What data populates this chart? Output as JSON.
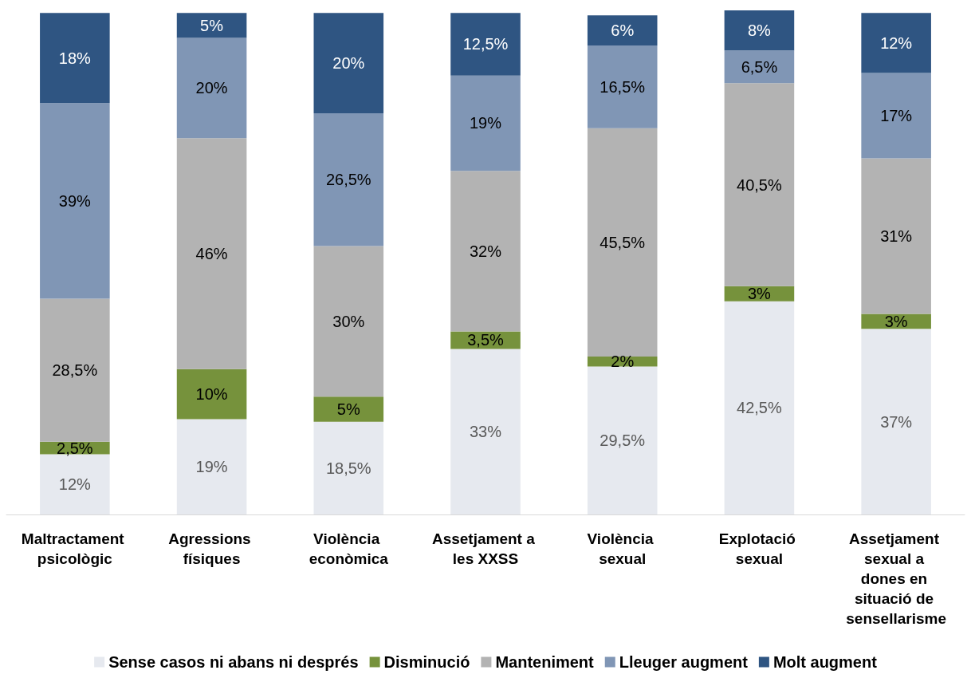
{
  "chart_data": {
    "type": "bar",
    "stacked": true,
    "categories": [
      "Maltractament psicològic",
      "Agressions físiques",
      "Violència econòmica",
      "Assetjament a les XXSS",
      "Violència sexual",
      "Explotació sexual",
      "Assetjament sexual a dones en situació de sensellarisme"
    ],
    "ylim": [
      0,
      100.5
    ],
    "tick_labels": "x",
    "legend": "bottom",
    "series": [
      {
        "name": "Sense casos ni abans ni després",
        "color": "#e6e9ef",
        "values": [
          12,
          19,
          18.5,
          33,
          29.5,
          42.5,
          37
        ],
        "value_labels": [
          "12%",
          "19%",
          "18,5%",
          "33%",
          "29,5%",
          "42,5%",
          "37%"
        ]
      },
      {
        "name": "Disminució",
        "color": "#76923c",
        "values": [
          2.5,
          10,
          5,
          3.5,
          2,
          3,
          3
        ],
        "value_labels": [
          "2,5%",
          "10%",
          "5%",
          "3,5%",
          "2%",
          "3%",
          "3%"
        ]
      },
      {
        "name": "Manteniment",
        "color": "#b3b3b3",
        "values": [
          28.5,
          46,
          30,
          32,
          45.5,
          40.5,
          31
        ],
        "value_labels": [
          "28,5%",
          "46%",
          "30%",
          "32%",
          "45,5%",
          "40,5%",
          "31%"
        ]
      },
      {
        "name": "Lleuger augment",
        "color": "#8096b5",
        "values": [
          39,
          20,
          26.5,
          19,
          16.5,
          6.5,
          17
        ],
        "value_labels": [
          "39%",
          "20%",
          "26,5%",
          "19%",
          "16,5%",
          "6,5%",
          "17%"
        ]
      },
      {
        "name": "Molt augment",
        "color": "#2f5582",
        "values": [
          18,
          5,
          20,
          12.5,
          6,
          8,
          12
        ],
        "value_labels": [
          "18%",
          "5%",
          "20%",
          "12,5%",
          "6%",
          "8%",
          "12%"
        ]
      }
    ]
  }
}
